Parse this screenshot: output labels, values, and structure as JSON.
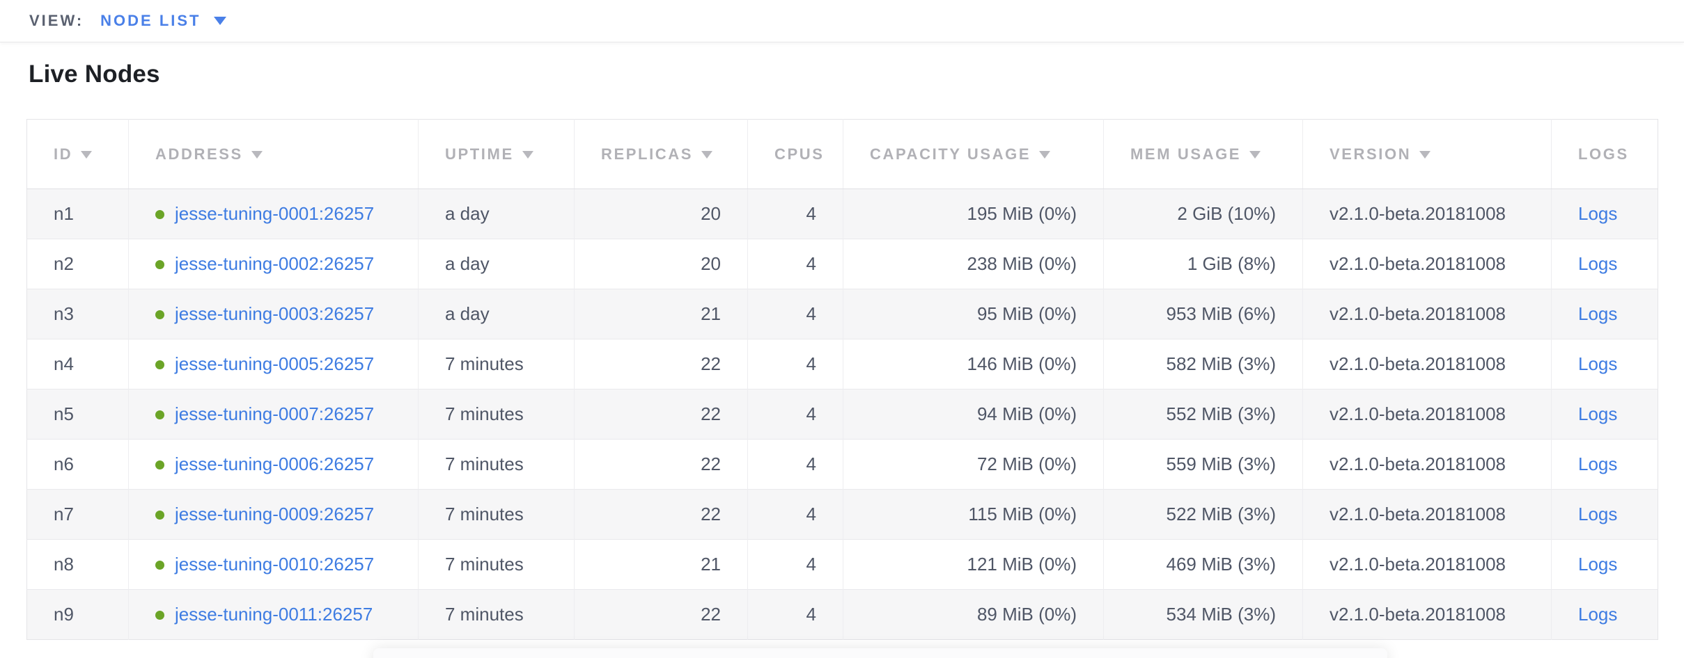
{
  "view_bar": {
    "label": "VIEW:",
    "selected": "NODE LIST"
  },
  "page": {
    "title": "Live Nodes"
  },
  "colors": {
    "accent_blue": "#4a80e8",
    "link_blue": "#3e7ce2",
    "status_green": "#6ba427",
    "header_gray": "#b1b1b6",
    "body_text": "#4f5666",
    "row_stripe": "#f6f6f7"
  },
  "table": {
    "columns": [
      {
        "field": "id",
        "label": "ID",
        "sortable": true,
        "align": "left"
      },
      {
        "field": "address",
        "label": "ADDRESS",
        "sortable": true,
        "align": "left"
      },
      {
        "field": "uptime",
        "label": "UPTIME",
        "sortable": true,
        "align": "left"
      },
      {
        "field": "replicas",
        "label": "REPLICAS",
        "sortable": true,
        "align": "right"
      },
      {
        "field": "cpus",
        "label": "CPUS",
        "sortable": false,
        "align": "right"
      },
      {
        "field": "capacity",
        "label": "CAPACITY USAGE",
        "sortable": true,
        "align": "right"
      },
      {
        "field": "mem",
        "label": "MEM USAGE",
        "sortable": true,
        "align": "right"
      },
      {
        "field": "version",
        "label": "VERSION",
        "sortable": true,
        "align": "left"
      },
      {
        "field": "logs",
        "label": "LOGS",
        "sortable": false,
        "align": "left"
      }
    ],
    "rows": [
      {
        "id": "n1",
        "status": "healthy",
        "address": "jesse-tuning-0001:26257",
        "uptime": "a day",
        "replicas": "20",
        "cpus": "4",
        "capacity": "195 MiB (0%)",
        "mem": "2 GiB (10%)",
        "version": "v2.1.0-beta.20181008",
        "logs": "Logs"
      },
      {
        "id": "n2",
        "status": "healthy",
        "address": "jesse-tuning-0002:26257",
        "uptime": "a day",
        "replicas": "20",
        "cpus": "4",
        "capacity": "238 MiB (0%)",
        "mem": "1 GiB (8%)",
        "version": "v2.1.0-beta.20181008",
        "logs": "Logs"
      },
      {
        "id": "n3",
        "status": "healthy",
        "address": "jesse-tuning-0003:26257",
        "uptime": "a day",
        "replicas": "21",
        "cpus": "4",
        "capacity": "95 MiB (0%)",
        "mem": "953 MiB (6%)",
        "version": "v2.1.0-beta.20181008",
        "logs": "Logs"
      },
      {
        "id": "n4",
        "status": "healthy",
        "address": "jesse-tuning-0005:26257",
        "uptime": "7 minutes",
        "replicas": "22",
        "cpus": "4",
        "capacity": "146 MiB (0%)",
        "mem": "582 MiB (3%)",
        "version": "v2.1.0-beta.20181008",
        "logs": "Logs"
      },
      {
        "id": "n5",
        "status": "healthy",
        "address": "jesse-tuning-0007:26257",
        "uptime": "7 minutes",
        "replicas": "22",
        "cpus": "4",
        "capacity": "94 MiB (0%)",
        "mem": "552 MiB (3%)",
        "version": "v2.1.0-beta.20181008",
        "logs": "Logs"
      },
      {
        "id": "n6",
        "status": "healthy",
        "address": "jesse-tuning-0006:26257",
        "uptime": "7 minutes",
        "replicas": "22",
        "cpus": "4",
        "capacity": "72 MiB (0%)",
        "mem": "559 MiB (3%)",
        "version": "v2.1.0-beta.20181008",
        "logs": "Logs"
      },
      {
        "id": "n7",
        "status": "healthy",
        "address": "jesse-tuning-0009:26257",
        "uptime": "7 minutes",
        "replicas": "22",
        "cpus": "4",
        "capacity": "115 MiB (0%)",
        "mem": "522 MiB (3%)",
        "version": "v2.1.0-beta.20181008",
        "logs": "Logs"
      },
      {
        "id": "n8",
        "status": "healthy",
        "address": "jesse-tuning-0010:26257",
        "uptime": "7 minutes",
        "replicas": "21",
        "cpus": "4",
        "capacity": "121 MiB (0%)",
        "mem": "469 MiB (3%)",
        "version": "v2.1.0-beta.20181008",
        "logs": "Logs"
      },
      {
        "id": "n9",
        "status": "healthy",
        "address": "jesse-tuning-0011:26257",
        "uptime": "7 minutes",
        "replicas": "22",
        "cpus": "4",
        "capacity": "89 MiB (0%)",
        "mem": "534 MiB (3%)",
        "version": "v2.1.0-beta.20181008",
        "logs": "Logs"
      }
    ]
  }
}
